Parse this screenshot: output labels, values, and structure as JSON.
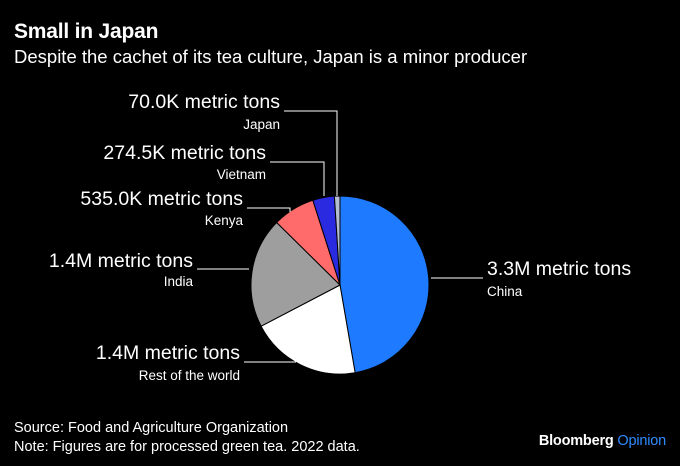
{
  "header": {
    "title": "Small in Japan",
    "subtitle": "Despite the cachet of its tea culture, Japan is a minor producer"
  },
  "footer": {
    "source": "Source: Food and Agriculture Organization",
    "note": "Note: Figures are for processed green tea. 2022 data.",
    "brand_main": "Bloomberg",
    "brand_accent": "Opinion"
  },
  "chart_data": {
    "type": "pie",
    "title": "Small in Japan",
    "subtitle": "Despite the cachet of its tea culture, Japan is a minor producer",
    "unit": "metric tons",
    "slices": [
      {
        "category": "China",
        "value": 3300000,
        "label": "3.3M metric tons",
        "color": "#1E7BFF"
      },
      {
        "category": "Rest of the world",
        "value": 1400000,
        "label": "1.4M metric tons",
        "color": "#FFFFFF"
      },
      {
        "category": "India",
        "value": 1400000,
        "label": "1.4M metric tons",
        "color": "#9E9E9E"
      },
      {
        "category": "Kenya",
        "value": 535000,
        "label": "535.0K metric tons",
        "color": "#FF6B6B"
      },
      {
        "category": "Vietnam",
        "value": 274500,
        "label": "274.5K metric tons",
        "color": "#2A2AE0"
      },
      {
        "category": "Japan",
        "value": 70000,
        "label": "70.0K metric tons",
        "color": "#B3BCD1"
      }
    ],
    "start_angle_deg": 0,
    "direction": "clockwise",
    "legend": "none"
  }
}
